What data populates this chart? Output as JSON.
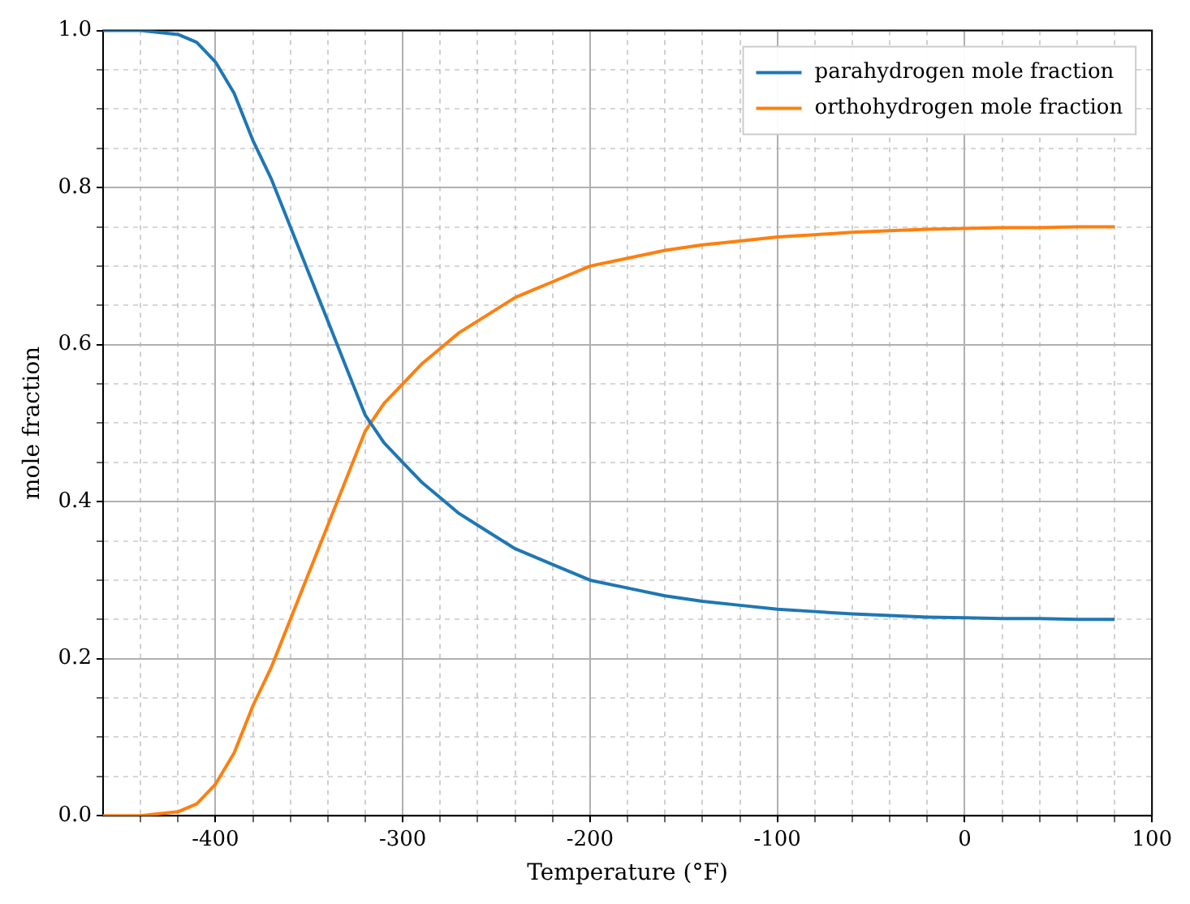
{
  "chart_data": {
    "type": "line",
    "xlabel": "Temperature (°F)",
    "ylabel": "mole fraction",
    "x": [
      -460,
      -440,
      -420,
      -410,
      -400,
      -390,
      -380,
      -370,
      -360,
      -350,
      -340,
      -330,
      -320,
      -310,
      -300,
      -290,
      -280,
      -270,
      -260,
      -250,
      -240,
      -230,
      -220,
      -200,
      -180,
      -160,
      -140,
      -120,
      -100,
      -80,
      -60,
      -40,
      -20,
      0,
      20,
      40,
      60,
      80
    ],
    "series": [
      {
        "name": "parahydrogen mole fraction",
        "color": "#1f77b4",
        "values": [
          1.0,
          1.0,
          0.995,
          0.985,
          0.96,
          0.92,
          0.86,
          0.81,
          0.75,
          0.69,
          0.63,
          0.57,
          0.51,
          0.475,
          0.45,
          0.425,
          0.405,
          0.385,
          0.37,
          0.355,
          0.34,
          0.33,
          0.32,
          0.3,
          0.29,
          0.28,
          0.273,
          0.268,
          0.263,
          0.26,
          0.257,
          0.255,
          0.253,
          0.252,
          0.251,
          0.251,
          0.25,
          0.25
        ]
      },
      {
        "name": "orthohydrogen mole fraction",
        "color": "#ff7f0e",
        "values": [
          0.0,
          0.0,
          0.005,
          0.015,
          0.04,
          0.08,
          0.14,
          0.19,
          0.25,
          0.31,
          0.37,
          0.43,
          0.49,
          0.525,
          0.55,
          0.575,
          0.595,
          0.615,
          0.63,
          0.645,
          0.66,
          0.67,
          0.68,
          0.7,
          0.71,
          0.72,
          0.727,
          0.732,
          0.737,
          0.74,
          0.743,
          0.745,
          0.747,
          0.748,
          0.749,
          0.749,
          0.75,
          0.75
        ]
      }
    ],
    "xlim": [
      -460,
      100
    ],
    "xticks": [
      {
        "value": -440,
        "label": null
      },
      {
        "value": -420,
        "label": null
      },
      -400,
      {
        "value": -380,
        "label": null
      },
      {
        "value": -360,
        "label": null
      },
      {
        "value": -340,
        "label": null
      },
      {
        "value": -320,
        "label": null
      },
      -300,
      {
        "value": -280,
        "label": null
      },
      {
        "value": -260,
        "label": null
      },
      {
        "value": -240,
        "label": null
      },
      {
        "value": -220,
        "label": null
      },
      -200,
      {
        "value": -180,
        "label": null
      },
      {
        "value": -160,
        "label": null
      },
      {
        "value": -140,
        "label": null
      },
      {
        "value": -120,
        "label": null
      },
      -100,
      {
        "value": -80,
        "label": null
      },
      {
        "value": -60,
        "label": null
      },
      {
        "value": -40,
        "label": null
      },
      {
        "value": -20,
        "label": null
      },
      0,
      {
        "value": 20,
        "label": null
      },
      {
        "value": 40,
        "label": null
      },
      {
        "value": 60,
        "label": null
      },
      {
        "value": 80,
        "label": null
      },
      100
    ],
    "ylim": [
      0,
      1
    ],
    "yticks": [
      {
        "value": 0,
        "label": "0.0"
      },
      {
        "value": 0.05,
        "label": null
      },
      {
        "value": 0.1,
        "label": null
      },
      {
        "value": 0.15,
        "label": null
      },
      {
        "value": 0.2,
        "label": "0.2"
      },
      {
        "value": 0.25,
        "label": null
      },
      {
        "value": 0.3,
        "label": null
      },
      {
        "value": 0.35,
        "label": null
      },
      {
        "value": 0.4,
        "label": "0.4"
      },
      {
        "value": 0.45,
        "label": null
      },
      {
        "value": 0.5,
        "label": null
      },
      {
        "value": 0.55,
        "label": null
      },
      {
        "value": 0.6,
        "label": "0.6"
      },
      {
        "value": 0.65,
        "label": null
      },
      {
        "value": 0.7,
        "label": null
      },
      {
        "value": 0.75,
        "label": null
      },
      {
        "value": 0.8,
        "label": "0.8"
      },
      {
        "value": 0.85,
        "label": null
      },
      {
        "value": 0.9,
        "label": null
      },
      {
        "value": 0.95,
        "label": null
      },
      {
        "value": 1.0,
        "label": "1.0"
      }
    ],
    "grid": true,
    "legend": "top right",
    "marker": "none",
    "line_style": "solid"
  }
}
